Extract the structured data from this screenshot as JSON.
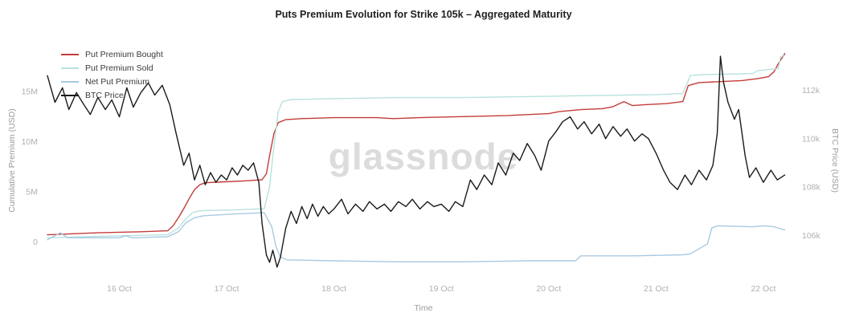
{
  "watermark": "glassnode",
  "chart_data": {
    "type": "line",
    "title": "Puts Premium Evolution for Strike 105k – Aggregated Maturity",
    "xlabel": "Time",
    "ylabel_left": "Cumulative Premium (USD)",
    "ylabel_right": "BTC Price (USD)",
    "grid": false,
    "legend_position": "top-left",
    "x_unit": "day of October",
    "y_left_unit": "millions USD",
    "y_right_unit": "thousands USD",
    "x_range": [
      15.3,
      22.3
    ],
    "y_left_range": [
      -3.5,
      19.5
    ],
    "y_right_range": [
      104.3,
      113.8
    ],
    "x_ticks": [
      {
        "value": 16,
        "label": "16 Oct"
      },
      {
        "value": 17,
        "label": "17 Oct"
      },
      {
        "value": 18,
        "label": "18 Oct"
      },
      {
        "value": 19,
        "label": "19 Oct"
      },
      {
        "value": 20,
        "label": "20 Oct"
      },
      {
        "value": 21,
        "label": "21 Oct"
      },
      {
        "value": 22,
        "label": "22 Oct"
      }
    ],
    "y_left_ticks": [
      {
        "value": 0,
        "label": "0"
      },
      {
        "value": 5,
        "label": "5M"
      },
      {
        "value": 10,
        "label": "10M"
      },
      {
        "value": 15,
        "label": "15M"
      }
    ],
    "y_right_ticks": [
      {
        "value": 106,
        "label": "106k"
      },
      {
        "value": 108,
        "label": "108k"
      },
      {
        "value": 110,
        "label": "110k"
      },
      {
        "value": 112,
        "label": "112k"
      }
    ],
    "series": [
      {
        "name": "Put Premium Bought",
        "color": "#c43c39",
        "axis": "left",
        "x": [
          15.33,
          15.8,
          16.2,
          16.45,
          16.5,
          16.55,
          16.6,
          16.65,
          16.7,
          16.75,
          16.8,
          17.0,
          17.2,
          17.33,
          17.37,
          17.4,
          17.44,
          17.48,
          17.55,
          17.7,
          18.0,
          18.4,
          18.55,
          18.8,
          19.2,
          19.6,
          20.0,
          20.1,
          20.3,
          20.5,
          20.6,
          20.7,
          20.78,
          20.9,
          21.1,
          21.25,
          21.3,
          21.4,
          21.6,
          21.8,
          21.95,
          22.05,
          22.1,
          22.14,
          22.2
        ],
        "y": [
          0.7,
          0.9,
          1.0,
          1.1,
          1.6,
          2.4,
          3.3,
          4.3,
          5.2,
          5.7,
          5.9,
          6.0,
          6.1,
          6.2,
          6.8,
          8.6,
          10.8,
          11.9,
          12.2,
          12.3,
          12.4,
          12.4,
          12.3,
          12.4,
          12.5,
          12.6,
          12.8,
          13.0,
          13.2,
          13.3,
          13.5,
          14.0,
          13.6,
          13.7,
          13.8,
          14.0,
          15.6,
          15.9,
          16.0,
          16.1,
          16.3,
          16.5,
          17.0,
          17.8,
          18.8
        ]
      },
      {
        "name": "Put Premium Sold",
        "color": "#b8e2de",
        "axis": "left",
        "x": [
          15.33,
          16.0,
          16.45,
          16.55,
          16.62,
          16.68,
          16.75,
          17.1,
          17.35,
          17.4,
          17.44,
          17.48,
          17.52,
          17.6,
          18.0,
          18.6,
          19.2,
          19.8,
          20.4,
          21.0,
          21.25,
          21.32,
          21.45,
          21.9,
          21.95,
          22.05,
          22.14,
          22.16,
          22.2
        ],
        "y": [
          0.4,
          0.6,
          0.7,
          1.4,
          2.3,
          2.9,
          3.1,
          3.2,
          3.3,
          5.5,
          9.5,
          13.0,
          14.0,
          14.2,
          14.3,
          14.4,
          14.4,
          14.5,
          14.6,
          14.7,
          14.8,
          16.6,
          16.7,
          16.8,
          17.1,
          17.2,
          17.3,
          18.5,
          18.6
        ]
      },
      {
        "name": "Net Put Premium",
        "color": "#a9c9e2",
        "axis": "left",
        "x": [
          15.33,
          15.45,
          15.52,
          15.7,
          16.0,
          16.06,
          16.12,
          16.45,
          16.55,
          16.62,
          16.7,
          16.78,
          17.1,
          17.35,
          17.42,
          17.46,
          17.5,
          17.56,
          18.0,
          18.6,
          19.2,
          19.8,
          20.25,
          20.3,
          20.8,
          21.25,
          21.32,
          21.48,
          21.52,
          21.58,
          21.9,
          22.0,
          22.1,
          22.16,
          22.2
        ],
        "y": [
          0.2,
          0.9,
          0.4,
          0.4,
          0.4,
          0.6,
          0.4,
          0.5,
          1.0,
          1.9,
          2.4,
          2.6,
          2.8,
          2.9,
          1.5,
          -0.5,
          -1.5,
          -1.8,
          -1.9,
          -2.0,
          -2.0,
          -1.9,
          -1.9,
          -1.4,
          -1.4,
          -1.3,
          -1.2,
          -0.2,
          1.4,
          1.6,
          1.5,
          1.6,
          1.5,
          1.3,
          1.2
        ]
      },
      {
        "name": "BTC Price",
        "color": "#1a1a1a",
        "axis": "right",
        "x": [
          15.33,
          15.4,
          15.47,
          15.53,
          15.6,
          15.67,
          15.73,
          15.8,
          15.87,
          15.93,
          16.0,
          16.07,
          16.13,
          16.2,
          16.27,
          16.33,
          16.4,
          16.47,
          16.53,
          16.6,
          16.65,
          16.7,
          16.75,
          16.8,
          16.85,
          16.9,
          16.95,
          17.0,
          17.05,
          17.1,
          17.15,
          17.2,
          17.25,
          17.3,
          17.33,
          17.37,
          17.4,
          17.43,
          17.47,
          17.5,
          17.55,
          17.6,
          17.65,
          17.7,
          17.75,
          17.8,
          17.85,
          17.9,
          17.95,
          18.0,
          18.07,
          18.13,
          18.2,
          18.27,
          18.33,
          18.4,
          18.47,
          18.53,
          18.6,
          18.67,
          18.73,
          18.8,
          18.87,
          18.93,
          19.0,
          19.07,
          19.13,
          19.2,
          19.27,
          19.33,
          19.4,
          19.47,
          19.53,
          19.6,
          19.67,
          19.73,
          19.8,
          19.87,
          19.93,
          20.0,
          20.07,
          20.13,
          20.2,
          20.27,
          20.33,
          20.4,
          20.47,
          20.53,
          20.6,
          20.67,
          20.73,
          20.8,
          20.87,
          20.93,
          21.0,
          21.07,
          21.13,
          21.2,
          21.27,
          21.33,
          21.4,
          21.47,
          21.53,
          21.57,
          21.6,
          21.63,
          21.67,
          21.73,
          21.77,
          21.83,
          21.87,
          21.93,
          22.0,
          22.07,
          22.13,
          22.2
        ],
        "y": [
          112.6,
          111.5,
          112.1,
          111.2,
          111.9,
          111.4,
          111.0,
          111.7,
          111.2,
          111.6,
          110.9,
          112.1,
          111.3,
          111.9,
          112.3,
          111.8,
          112.2,
          111.4,
          110.2,
          108.9,
          109.4,
          108.3,
          108.9,
          108.1,
          108.6,
          108.2,
          108.5,
          108.3,
          108.8,
          108.5,
          108.9,
          108.7,
          109.0,
          108.2,
          106.5,
          105.2,
          104.9,
          105.4,
          104.7,
          105.1,
          106.3,
          107.0,
          106.5,
          107.2,
          106.7,
          107.3,
          106.8,
          107.2,
          106.9,
          107.1,
          107.5,
          106.9,
          107.3,
          107.0,
          107.4,
          107.1,
          107.3,
          107.0,
          107.4,
          107.2,
          107.5,
          107.1,
          107.4,
          107.2,
          107.3,
          107.0,
          107.4,
          107.2,
          108.3,
          107.9,
          108.5,
          108.1,
          109.0,
          108.5,
          109.4,
          109.1,
          109.8,
          109.3,
          108.7,
          109.9,
          110.3,
          110.7,
          110.9,
          110.4,
          110.7,
          110.2,
          110.6,
          110.0,
          110.5,
          110.1,
          110.4,
          109.9,
          110.2,
          110.0,
          109.4,
          108.7,
          108.2,
          107.9,
          108.5,
          108.1,
          108.7,
          108.3,
          108.9,
          110.2,
          113.4,
          112.3,
          111.5,
          110.8,
          111.2,
          109.3,
          108.4,
          108.8,
          108.2,
          108.7,
          108.3,
          108.5
        ]
      }
    ]
  }
}
